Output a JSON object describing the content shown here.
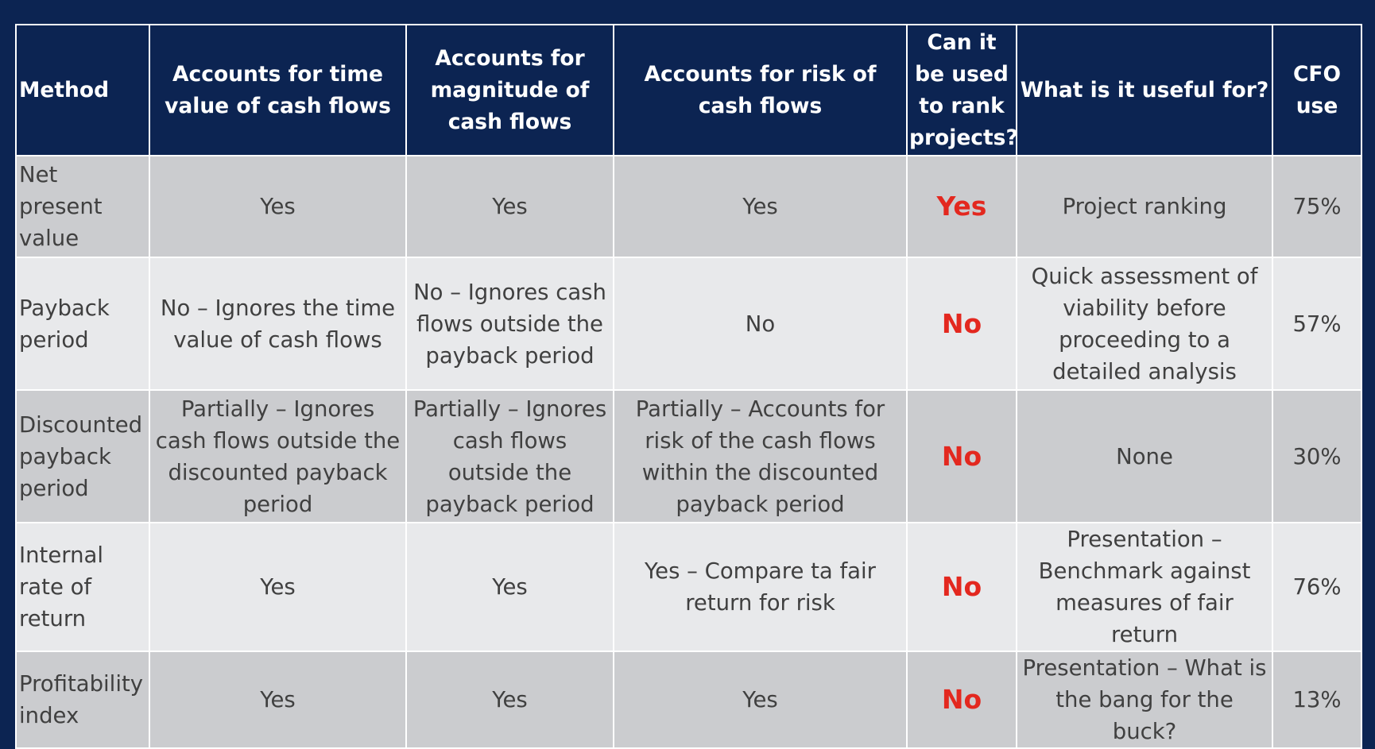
{
  "table": {
    "headers": [
      "Method",
      "Accounts for time value of cash flows",
      "Accounts for magnitude of cash flows",
      "Accounts for risk of cash flows",
      "Can it be used to rank projects?",
      "What is it useful for?",
      "CFO use"
    ],
    "rows": [
      {
        "method": "Net present value",
        "time_value": "Yes",
        "magnitude": "Yes",
        "risk": "Yes",
        "rank": "Yes",
        "useful_for": "Project ranking",
        "cfo_use": "75%"
      },
      {
        "method": "Payback period",
        "time_value": "No – Ignores the time value of cash flows",
        "magnitude": "No – Ignores cash flows outside the payback period",
        "risk": "No",
        "rank": "No",
        "useful_for": "Quick assessment of viability before proceeding to a detailed analysis",
        "cfo_use": "57%"
      },
      {
        "method": "Discounted payback period",
        "time_value": "Partially – Ignores cash flows outside the discounted payback period",
        "magnitude": "Partially – Ignores cash flows outside the payback period",
        "risk": "Partially – Accounts for risk of the cash flows within the discounted payback period",
        "rank": "No",
        "useful_for": "None",
        "cfo_use": "30%"
      },
      {
        "method": "Internal rate of return",
        "time_value": "Yes",
        "magnitude": "Yes",
        "risk": "Yes – Compare ta fair return for risk",
        "rank": "No",
        "useful_for": "Presentation – Benchmark against measures of fair return",
        "cfo_use": "76%"
      },
      {
        "method": "Profitability index",
        "time_value": "Yes",
        "magnitude": "Yes",
        "risk": "Yes",
        "rank": "No",
        "useful_for": "Presentation – What is the bang for the buck?",
        "cfo_use": "13%"
      }
    ]
  },
  "colors": {
    "background": "#0c2452",
    "header_bg": "#0c2452",
    "row_dark": "#cbcccf",
    "row_light": "#e8e9eb",
    "rank_text": "#e3281f",
    "body_text": "#404040"
  }
}
